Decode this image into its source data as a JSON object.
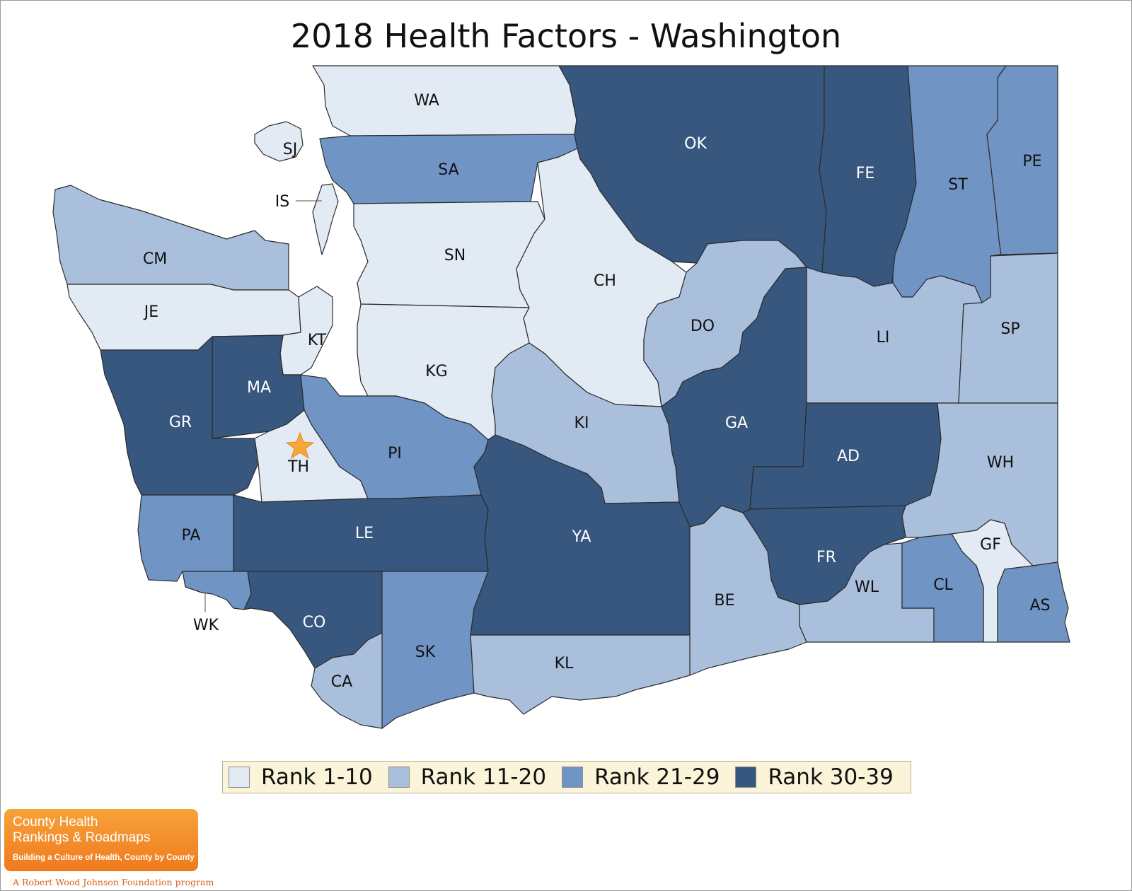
{
  "title": "2018 Health Factors - Washington",
  "colors": {
    "rank_1_10": "#e2eaf4",
    "rank_11_20": "#aabfdb",
    "rank_21_29": "#7095c5",
    "rank_30_39": "#38577f"
  },
  "legend": [
    {
      "label": "Rank 1-10",
      "tier": "rank_1_10"
    },
    {
      "label": "Rank 11-20",
      "tier": "rank_11_20"
    },
    {
      "label": "Rank 21-29",
      "tier": "rank_21_29"
    },
    {
      "label": "Rank 30-39",
      "tier": "rank_30_39"
    }
  ],
  "counties": [
    {
      "code": "WA",
      "tier": "rank_1_10"
    },
    {
      "code": "SJ",
      "tier": "rank_1_10"
    },
    {
      "code": "IS",
      "tier": "rank_1_10"
    },
    {
      "code": "SA",
      "tier": "rank_21_29"
    },
    {
      "code": "OK",
      "tier": "rank_30_39"
    },
    {
      "code": "FE",
      "tier": "rank_30_39"
    },
    {
      "code": "ST",
      "tier": "rank_21_29"
    },
    {
      "code": "PE",
      "tier": "rank_21_29"
    },
    {
      "code": "CM",
      "tier": "rank_11_20"
    },
    {
      "code": "JE",
      "tier": "rank_1_10"
    },
    {
      "code": "SN",
      "tier": "rank_1_10"
    },
    {
      "code": "CH",
      "tier": "rank_1_10"
    },
    {
      "code": "DO",
      "tier": "rank_11_20"
    },
    {
      "code": "LI",
      "tier": "rank_11_20"
    },
    {
      "code": "SP",
      "tier": "rank_11_20"
    },
    {
      "code": "KT",
      "tier": "rank_1_10"
    },
    {
      "code": "KG",
      "tier": "rank_1_10"
    },
    {
      "code": "MA",
      "tier": "rank_30_39"
    },
    {
      "code": "GR",
      "tier": "rank_30_39"
    },
    {
      "code": "TH",
      "tier": "rank_1_10"
    },
    {
      "code": "PI",
      "tier": "rank_21_29"
    },
    {
      "code": "KI",
      "tier": "rank_11_20"
    },
    {
      "code": "GA",
      "tier": "rank_30_39"
    },
    {
      "code": "AD",
      "tier": "rank_30_39"
    },
    {
      "code": "WH",
      "tier": "rank_11_20"
    },
    {
      "code": "PA",
      "tier": "rank_21_29"
    },
    {
      "code": "LE",
      "tier": "rank_30_39"
    },
    {
      "code": "YA",
      "tier": "rank_30_39"
    },
    {
      "code": "FR",
      "tier": "rank_30_39"
    },
    {
      "code": "GF",
      "tier": "rank_1_10"
    },
    {
      "code": "WL",
      "tier": "rank_11_20"
    },
    {
      "code": "CL",
      "tier": "rank_21_29"
    },
    {
      "code": "AS",
      "tier": "rank_21_29"
    },
    {
      "code": "BE",
      "tier": "rank_11_20"
    },
    {
      "code": "WK",
      "tier": "rank_21_29"
    },
    {
      "code": "CO",
      "tier": "rank_30_39"
    },
    {
      "code": "SK",
      "tier": "rank_21_29"
    },
    {
      "code": "CA",
      "tier": "rank_11_20"
    },
    {
      "code": "KL",
      "tier": "rank_11_20"
    }
  ],
  "marker": {
    "county": "TH",
    "icon": "star-icon",
    "color": "#f7a63a"
  },
  "logo": {
    "line1": "County Health",
    "line2": "Rankings & Roadmaps",
    "tagline": "Building a Culture of Health, County by County",
    "program": "A Robert Wood Johnson Foundation program"
  }
}
